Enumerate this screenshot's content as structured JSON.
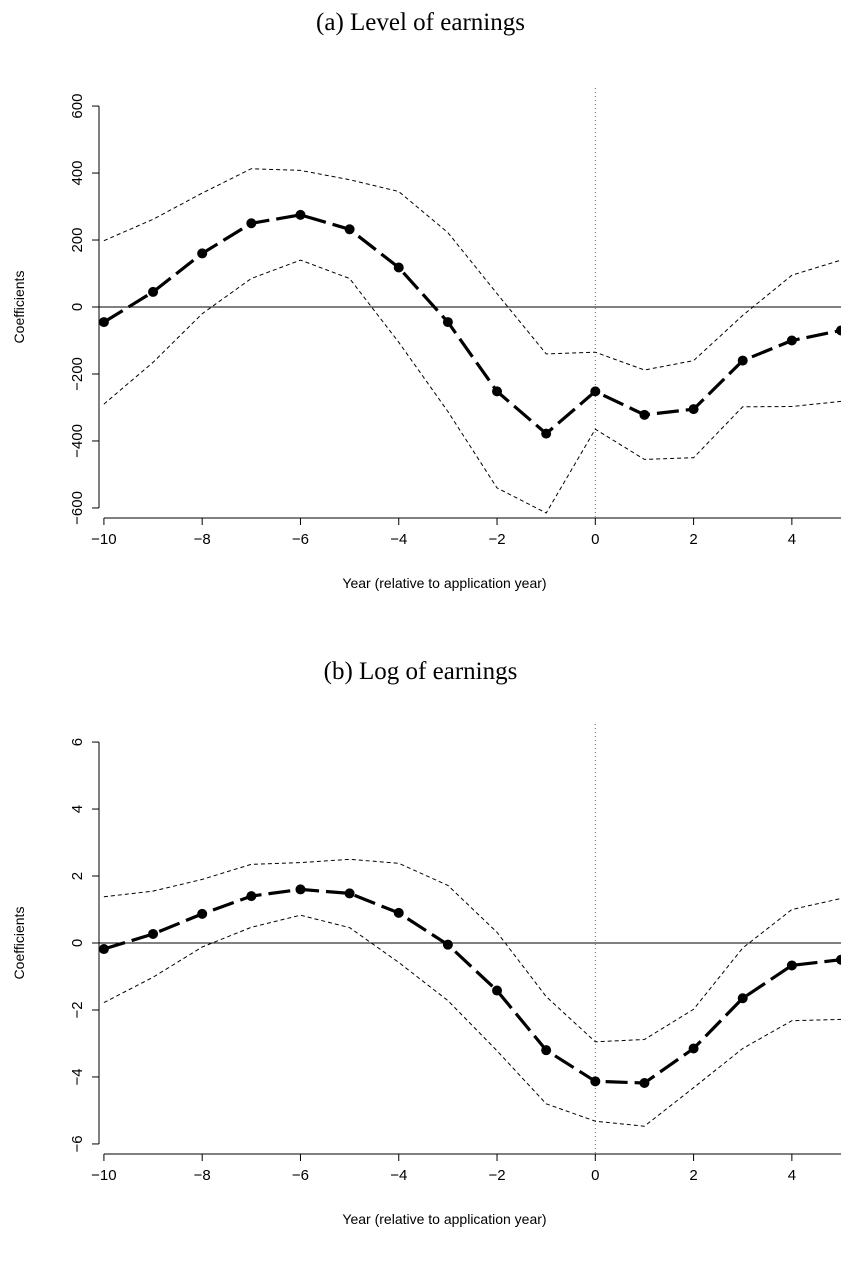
{
  "chart_data": [
    {
      "type": "line",
      "title": "(a) Level of earnings",
      "xlabel": "Year (relative to application year)",
      "ylabel": "Coefficients",
      "xlim": [
        -10.1,
        5
      ],
      "ylim": [
        -630,
        630
      ],
      "xticks": [
        -10,
        -8,
        -6,
        -4,
        -2,
        0,
        2,
        4
      ],
      "xtick_labels": [
        "−10",
        "−8",
        "−6",
        "−4",
        "−2",
        "0",
        "2",
        "4"
      ],
      "yticks": [
        -600,
        -400,
        -200,
        0,
        200,
        400,
        600
      ],
      "ytick_labels": [
        "−600",
        "−400",
        "−200",
        "0",
        "200",
        "400",
        "600"
      ],
      "hline": 0,
      "vline": 0,
      "grid": false,
      "x": [
        -10,
        -9,
        -8,
        -7,
        -6,
        -5,
        -4,
        -3,
        -2,
        -1,
        0,
        1,
        2,
        3,
        4,
        5
      ],
      "series": [
        {
          "name": "",
          "style": "estimate",
          "values": [
            -45,
            45,
            160,
            250,
            275,
            232,
            118,
            -45,
            -252,
            -378,
            -252,
            -322,
            -305,
            -160,
            -100,
            -70
          ]
        },
        {
          "name": "",
          "style": "upper",
          "values": [
            198,
            262,
            340,
            413,
            408,
            380,
            345,
            222,
            40,
            -140,
            -135,
            -188,
            -160,
            -25,
            95,
            140
          ]
        },
        {
          "name": "",
          "style": "lower",
          "values": [
            -290,
            -165,
            -20,
            85,
            140,
            85,
            -105,
            -312,
            -540,
            -615,
            -365,
            -455,
            -450,
            -298,
            -297,
            -282
          ]
        }
      ]
    },
    {
      "type": "line",
      "title": "(b) Log of earnings",
      "xlabel": "Year (relative to application year)",
      "ylabel": "Coefficients",
      "xlim": [
        -10.1,
        5
      ],
      "ylim": [
        -6.3,
        6.3
      ],
      "xticks": [
        -10,
        -8,
        -6,
        -4,
        -2,
        0,
        2,
        4
      ],
      "xtick_labels": [
        "−10",
        "−8",
        "−6",
        "−4",
        "−2",
        "0",
        "2",
        "4"
      ],
      "yticks": [
        -6,
        -4,
        -2,
        0,
        2,
        4,
        6
      ],
      "ytick_labels": [
        "−6",
        "−4",
        "−2",
        "0",
        "2",
        "4",
        "6"
      ],
      "hline": 0,
      "vline": 0,
      "grid": false,
      "x": [
        -10,
        -9,
        -8,
        -7,
        -6,
        -5,
        -4,
        -3,
        -2,
        -1,
        0,
        1,
        2,
        3,
        4,
        5
      ],
      "series": [
        {
          "name": "",
          "style": "estimate",
          "values": [
            -0.18,
            0.27,
            0.87,
            1.4,
            1.6,
            1.48,
            0.9,
            -0.05,
            -1.42,
            -3.2,
            -4.13,
            -4.18,
            -3.15,
            -1.65,
            -0.67,
            -0.5
          ]
        },
        {
          "name": "",
          "style": "upper",
          "values": [
            1.38,
            1.55,
            1.9,
            2.35,
            2.4,
            2.5,
            2.38,
            1.72,
            0.32,
            -1.6,
            -2.95,
            -2.88,
            -1.98,
            -0.15,
            1.0,
            1.33
          ]
        },
        {
          "name": "",
          "style": "lower",
          "values": [
            -1.78,
            -1.02,
            -0.12,
            0.47,
            0.83,
            0.46,
            -0.58,
            -1.72,
            -3.22,
            -4.8,
            -5.32,
            -5.47,
            -4.32,
            -3.15,
            -2.32,
            -2.28
          ]
        }
      ]
    }
  ]
}
